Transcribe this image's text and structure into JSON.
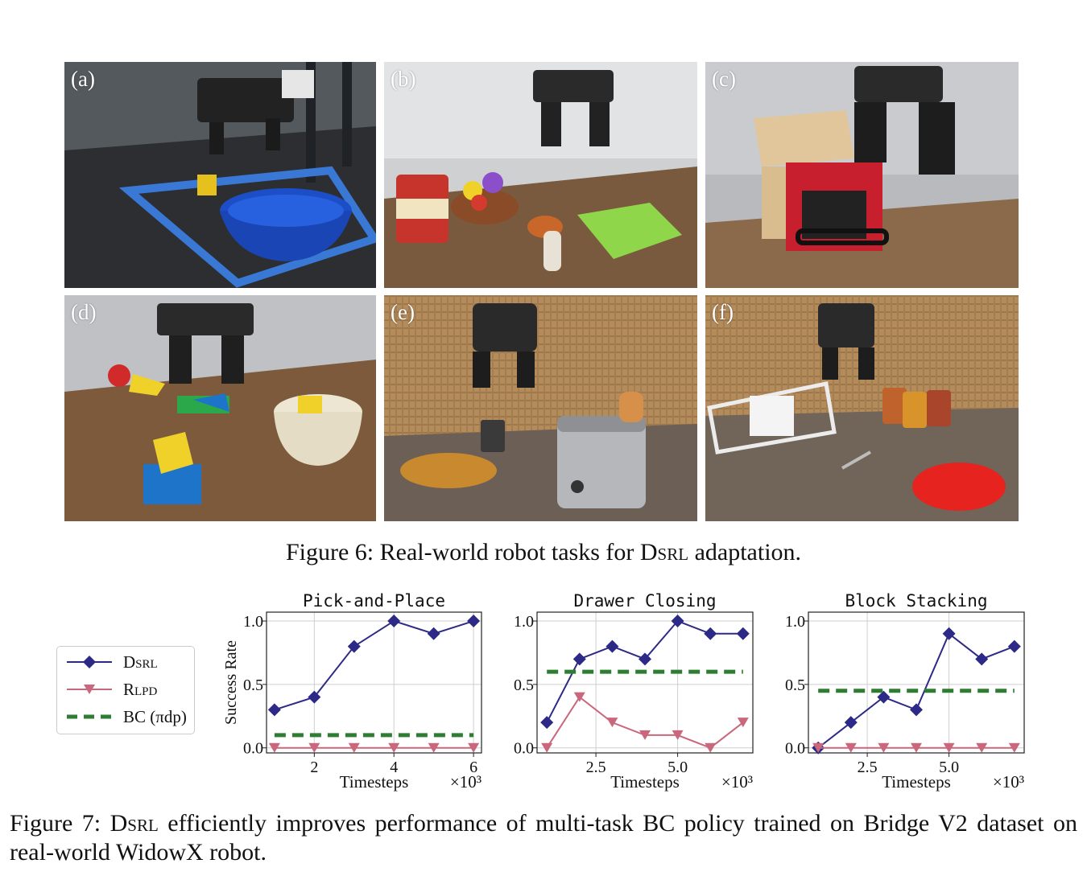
{
  "figure6": {
    "panels": [
      {
        "label": "(a)"
      },
      {
        "label": "(b)"
      },
      {
        "label": "(c)"
      },
      {
        "label": "(d)"
      },
      {
        "label": "(e)"
      },
      {
        "label": "(f)"
      }
    ],
    "caption_prefix": "Figure 6: Real-world robot tasks for ",
    "caption_method": "Dsrl",
    "caption_suffix": " adaptation."
  },
  "legend": {
    "entries": [
      {
        "label": "Dsrl",
        "color": "#2d2a87",
        "marker": "diamond"
      },
      {
        "label": "Rlpd",
        "color": "#c9677c",
        "marker": "triangle-down"
      },
      {
        "label": "BC (πdp)",
        "color": "#2e7d32",
        "marker": "dashed-line"
      }
    ]
  },
  "chart_data": [
    {
      "type": "line",
      "title": "Pick-and-Place",
      "xlabel": "Timesteps",
      "ylabel": "Success Rate",
      "x_multiplier": "×10³",
      "xlim": [
        0.8,
        6.2
      ],
      "ylim": [
        -0.04,
        1.07
      ],
      "xticks": [
        2,
        4,
        6
      ],
      "xticklabels": [
        "2",
        "4",
        "6"
      ],
      "yticks": [
        0.0,
        0.5,
        1.0
      ],
      "yticklabels": [
        "0.0",
        "0.5",
        "1.0"
      ],
      "grid": true,
      "series": [
        {
          "name": "Dsrl",
          "color": "#2d2a87",
          "x": [
            1,
            2,
            3,
            4,
            5,
            6
          ],
          "y": [
            0.3,
            0.4,
            0.8,
            1.0,
            0.9,
            1.0
          ]
        },
        {
          "name": "Rlpd",
          "color": "#c9677c",
          "x": [
            1,
            2,
            3,
            4,
            5,
            6
          ],
          "y": [
            0.0,
            0.0,
            0.0,
            0.0,
            0.0,
            0.0
          ]
        },
        {
          "name": "BC (πdp)",
          "color": "#2e7d32",
          "x": [
            1,
            6
          ],
          "y": [
            0.1,
            0.1
          ],
          "style": "dashed"
        }
      ]
    },
    {
      "type": "line",
      "title": "Drawer Closing",
      "xlabel": "Timesteps",
      "ylabel": "",
      "x_multiplier": "×10³",
      "xlim": [
        0.7,
        7.3
      ],
      "ylim": [
        -0.04,
        1.07
      ],
      "xticks": [
        2.5,
        5.0
      ],
      "xticklabels": [
        "2.5",
        "5.0"
      ],
      "yticks": [
        0.0,
        0.5,
        1.0
      ],
      "yticklabels": [
        "0.0",
        "0.5",
        "1.0"
      ],
      "grid": true,
      "series": [
        {
          "name": "Dsrl",
          "color": "#2d2a87",
          "x": [
            1,
            2,
            3,
            4,
            5,
            6,
            7
          ],
          "y": [
            0.2,
            0.7,
            0.8,
            0.7,
            1.0,
            0.9,
            0.9
          ]
        },
        {
          "name": "Rlpd",
          "color": "#c9677c",
          "x": [
            1,
            2,
            3,
            4,
            5,
            6,
            7
          ],
          "y": [
            0.0,
            0.4,
            0.2,
            0.1,
            0.1,
            0.0,
            0.2
          ]
        },
        {
          "name": "BC (πdp)",
          "color": "#2e7d32",
          "x": [
            1,
            7
          ],
          "y": [
            0.6,
            0.6
          ],
          "style": "dashed"
        }
      ]
    },
    {
      "type": "line",
      "title": "Block Stacking",
      "xlabel": "Timesteps",
      "ylabel": "",
      "x_multiplier": "×10³",
      "xlim": [
        0.7,
        7.3
      ],
      "ylim": [
        -0.04,
        1.07
      ],
      "xticks": [
        2.5,
        5.0
      ],
      "xticklabels": [
        "2.5",
        "5.0"
      ],
      "yticks": [
        0.0,
        0.5,
        1.0
      ],
      "yticklabels": [
        "0.0",
        "0.5",
        "1.0"
      ],
      "grid": true,
      "series": [
        {
          "name": "Dsrl",
          "color": "#2d2a87",
          "x": [
            1,
            2,
            3,
            4,
            5,
            6,
            7
          ],
          "y": [
            0.0,
            0.2,
            0.4,
            0.3,
            0.9,
            0.7,
            0.8
          ]
        },
        {
          "name": "Rlpd",
          "color": "#c9677c",
          "x": [
            1,
            2,
            3,
            4,
            5,
            6,
            7
          ],
          "y": [
            0.0,
            0.0,
            0.0,
            0.0,
            0.0,
            0.0,
            0.0
          ]
        },
        {
          "name": "BC (πdp)",
          "color": "#2e7d32",
          "x": [
            1,
            7
          ],
          "y": [
            0.45,
            0.45
          ],
          "style": "dashed"
        }
      ]
    }
  ],
  "figure7": {
    "caption_prefix": "Figure 7: ",
    "caption_method": "Dsrl",
    "caption_suffix": " efficiently improves performance of multi-task BC policy trained on Bridge V2 dataset on real-world WidowX robot."
  }
}
